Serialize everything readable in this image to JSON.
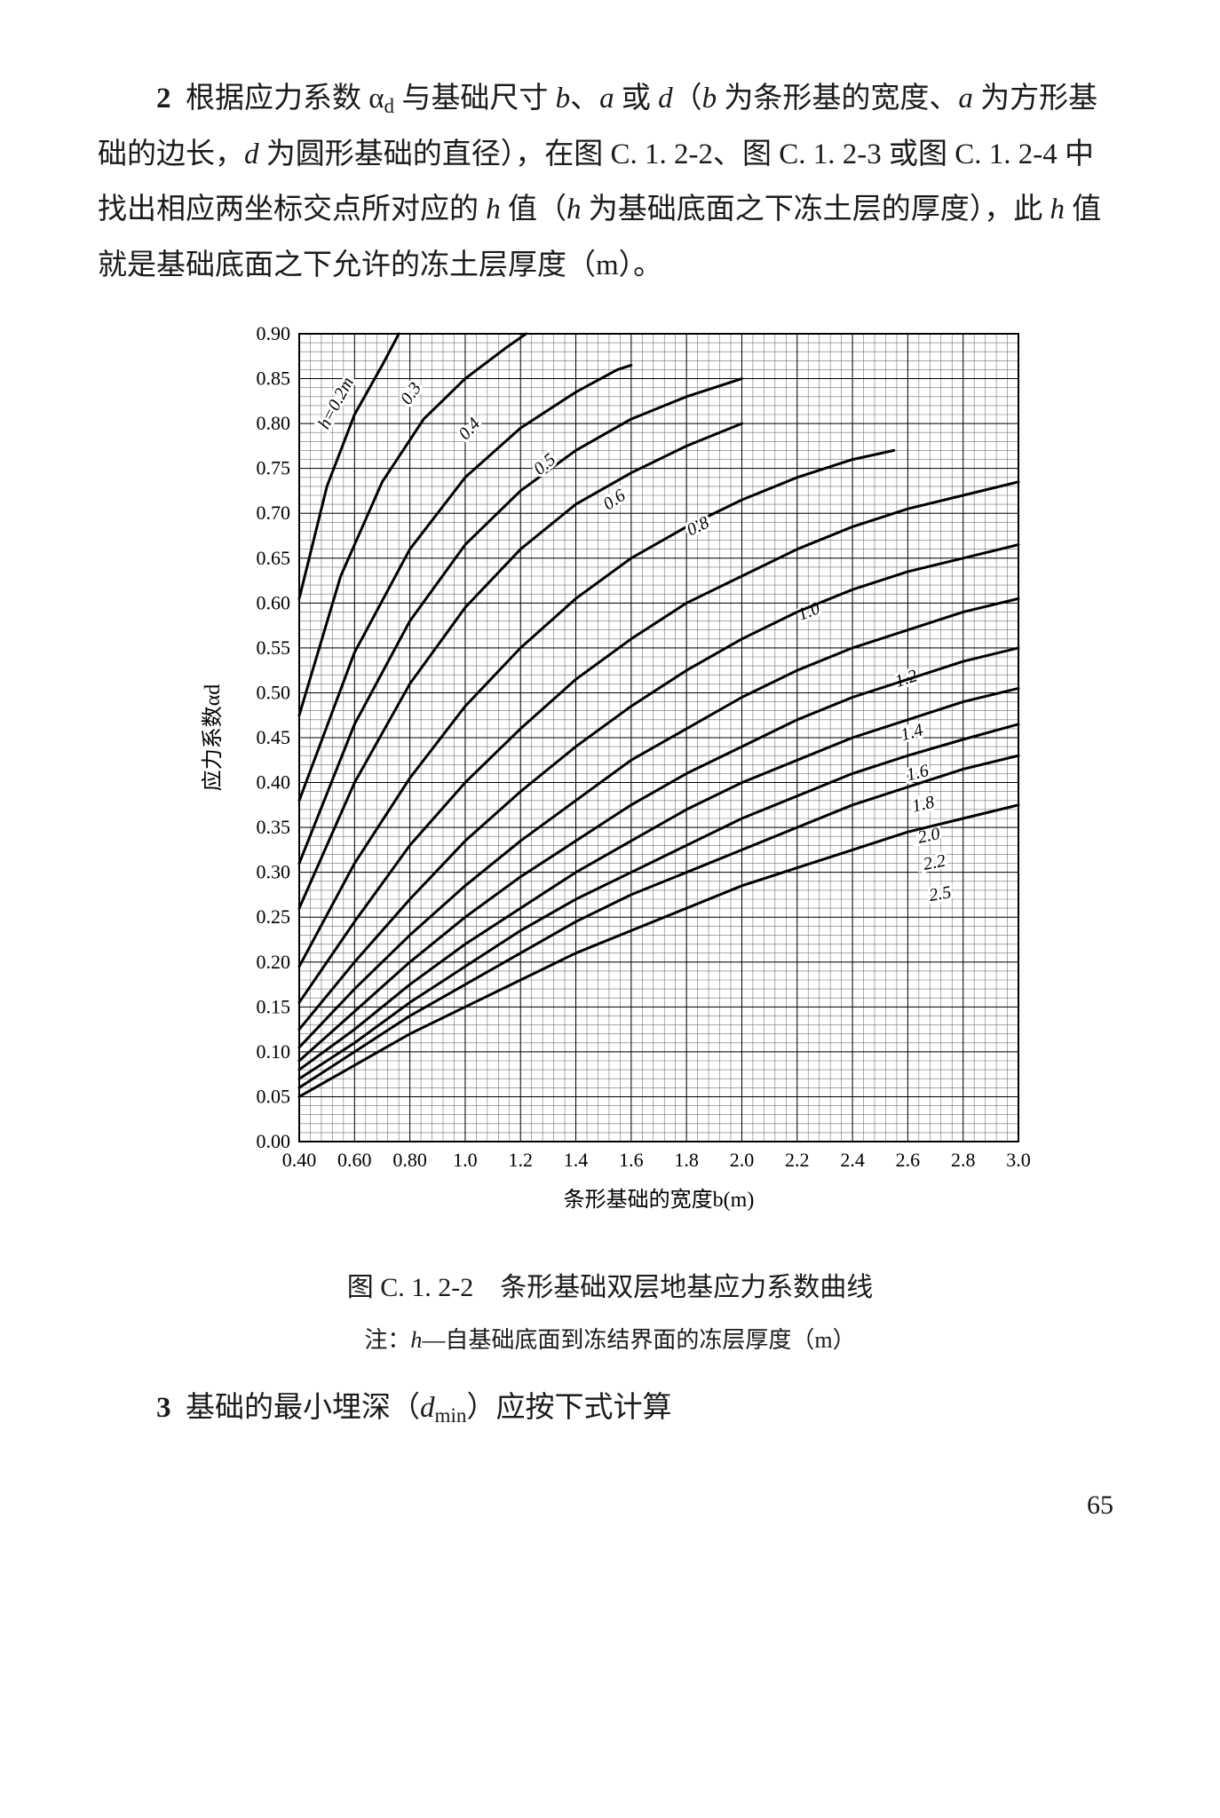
{
  "para2": {
    "num": "2",
    "text_1": "根据应力系数 α",
    "text_1b": " 与基础尺寸 ",
    "b": "b",
    "a": "a",
    "d": "d",
    "text_2": "、",
    "text_3": " 或 ",
    "text_4": "（",
    "text_5": " 为条形基的宽度、",
    "text_6": " 为方形基础的边长，",
    "text_7": " 为圆形基础的直径），在图 C. 1. 2-2、图 C. 1. 2-3 或图 C. 1. 2-4 中找出相应两坐标交点所对应的 ",
    "h": "h",
    "text_8": " 值（",
    "text_9": " 为基础底面之下冻土层的厚度），此 ",
    "text_10": " 值就是基础底面之下允许的冻土层厚度（m）。"
  },
  "chart": {
    "type": "line",
    "xlabel": "条形基础的宽度b(m)",
    "ylabel": "应力系数αd",
    "xlim": [
      0.4,
      3.0
    ],
    "ylim": [
      0,
      0.9
    ],
    "xticks": [
      0.4,
      0.6,
      0.8,
      1.0,
      1.2,
      1.4,
      1.6,
      1.8,
      2.0,
      2.2,
      2.4,
      2.6,
      2.8,
      3.0
    ],
    "xtick_labels": [
      "0.40",
      "0.60",
      "0.80",
      "1.0",
      "1.2",
      "1.4",
      "1.6",
      "1.8",
      "2.0",
      "2.2",
      "2.4",
      "2.6",
      "2.8",
      "3.0"
    ],
    "yticks": [
      0.0,
      0.05,
      0.1,
      0.15,
      0.2,
      0.25,
      0.3,
      0.35,
      0.4,
      0.45,
      0.5,
      0.55,
      0.6,
      0.65,
      0.7,
      0.75,
      0.8,
      0.85,
      0.9
    ],
    "ytick_labels": [
      "0.00",
      "0.05",
      "0.10",
      "0.15",
      "0.20",
      "0.25",
      "0.30",
      "0.35",
      "0.40",
      "0.45",
      "0.50",
      "0.55",
      "0.60",
      "0.65",
      "0.70",
      "0.75",
      "0.80",
      "0.85",
      "0.90"
    ],
    "minor_x_step": 0.04,
    "minor_y_step": 0.01,
    "line_color": "#000000",
    "grid_color": "#000000",
    "minor_grid_stroke": 0.6,
    "major_grid_stroke": 1.0,
    "curve_stroke": 3.0,
    "background_color": "#ffffff",
    "label_fontsize": 24,
    "tick_fontsize": 22,
    "series_first_label": "h=0.2m",
    "series": [
      {
        "h": "0.2",
        "pts": [
          [
            0.4,
            0.605
          ],
          [
            0.5,
            0.73
          ],
          [
            0.6,
            0.81
          ],
          [
            0.7,
            0.865
          ],
          [
            0.76,
            0.9
          ]
        ],
        "label_xy": [
          0.55,
          0.82
        ],
        "label_rot": -62
      },
      {
        "h": "0.3",
        "pts": [
          [
            0.4,
            0.475
          ],
          [
            0.55,
            0.63
          ],
          [
            0.7,
            0.735
          ],
          [
            0.85,
            0.805
          ],
          [
            1.0,
            0.85
          ],
          [
            1.15,
            0.885
          ],
          [
            1.22,
            0.9
          ]
        ],
        "label_xy": [
          0.82,
          0.83
        ],
        "label_rot": -55
      },
      {
        "h": "0.4",
        "pts": [
          [
            0.4,
            0.38
          ],
          [
            0.6,
            0.545
          ],
          [
            0.8,
            0.66
          ],
          [
            1.0,
            0.74
          ],
          [
            1.2,
            0.795
          ],
          [
            1.4,
            0.835
          ],
          [
            1.55,
            0.86
          ],
          [
            1.6,
            0.865
          ]
        ],
        "label_xy": [
          1.03,
          0.79
        ],
        "label_rot": -48
      },
      {
        "h": "0.5",
        "pts": [
          [
            0.4,
            0.31
          ],
          [
            0.6,
            0.465
          ],
          [
            0.8,
            0.58
          ],
          [
            1.0,
            0.665
          ],
          [
            1.2,
            0.725
          ],
          [
            1.4,
            0.77
          ],
          [
            1.6,
            0.805
          ],
          [
            1.8,
            0.83
          ],
          [
            2.0,
            0.85
          ]
        ],
        "label_xy": [
          1.3,
          0.75
        ],
        "label_rot": -40
      },
      {
        "h": "0.6",
        "pts": [
          [
            0.4,
            0.26
          ],
          [
            0.6,
            0.4
          ],
          [
            0.8,
            0.51
          ],
          [
            1.0,
            0.595
          ],
          [
            1.2,
            0.66
          ],
          [
            1.4,
            0.71
          ],
          [
            1.6,
            0.745
          ],
          [
            1.8,
            0.775
          ],
          [
            2.0,
            0.8
          ]
        ],
        "label_xy": [
          1.55,
          0.71
        ],
        "label_rot": -34
      },
      {
        "h": "0.8",
        "pts": [
          [
            0.4,
            0.195
          ],
          [
            0.6,
            0.31
          ],
          [
            0.8,
            0.405
          ],
          [
            1.0,
            0.485
          ],
          [
            1.2,
            0.55
          ],
          [
            1.4,
            0.605
          ],
          [
            1.6,
            0.65
          ],
          [
            1.8,
            0.685
          ],
          [
            2.0,
            0.715
          ],
          [
            2.2,
            0.74
          ],
          [
            2.4,
            0.76
          ],
          [
            2.55,
            0.77
          ]
        ],
        "label_xy": [
          1.85,
          0.68
        ],
        "label_rot": -26
      },
      {
        "h": "1.0",
        "pts": [
          [
            0.4,
            0.155
          ],
          [
            0.6,
            0.245
          ],
          [
            0.8,
            0.33
          ],
          [
            1.0,
            0.4
          ],
          [
            1.2,
            0.46
          ],
          [
            1.4,
            0.515
          ],
          [
            1.6,
            0.56
          ],
          [
            1.8,
            0.6
          ],
          [
            2.0,
            0.63
          ],
          [
            2.2,
            0.66
          ],
          [
            2.4,
            0.685
          ],
          [
            2.6,
            0.705
          ],
          [
            2.8,
            0.72
          ],
          [
            3.0,
            0.735
          ]
        ],
        "label_xy": [
          2.25,
          0.585
        ],
        "label_rot": -22
      },
      {
        "h": "1.2",
        "pts": [
          [
            0.4,
            0.125
          ],
          [
            0.6,
            0.2
          ],
          [
            0.8,
            0.27
          ],
          [
            1.0,
            0.335
          ],
          [
            1.2,
            0.39
          ],
          [
            1.4,
            0.44
          ],
          [
            1.6,
            0.485
          ],
          [
            1.8,
            0.525
          ],
          [
            2.0,
            0.56
          ],
          [
            2.2,
            0.59
          ],
          [
            2.4,
            0.615
          ],
          [
            2.6,
            0.635
          ],
          [
            2.8,
            0.65
          ],
          [
            3.0,
            0.665
          ]
        ],
        "label_xy": [
          2.6,
          0.51
        ],
        "label_rot": -18
      },
      {
        "h": "1.4",
        "pts": [
          [
            0.4,
            0.105
          ],
          [
            0.6,
            0.17
          ],
          [
            0.8,
            0.23
          ],
          [
            1.0,
            0.285
          ],
          [
            1.2,
            0.335
          ],
          [
            1.4,
            0.38
          ],
          [
            1.6,
            0.425
          ],
          [
            1.8,
            0.46
          ],
          [
            2.0,
            0.495
          ],
          [
            2.2,
            0.525
          ],
          [
            2.4,
            0.55
          ],
          [
            2.6,
            0.57
          ],
          [
            2.8,
            0.59
          ],
          [
            3.0,
            0.605
          ]
        ],
        "label_xy": [
          2.62,
          0.45
        ],
        "label_rot": -16
      },
      {
        "h": "1.6",
        "pts": [
          [
            0.4,
            0.09
          ],
          [
            0.6,
            0.145
          ],
          [
            0.8,
            0.2
          ],
          [
            1.0,
            0.25
          ],
          [
            1.2,
            0.295
          ],
          [
            1.4,
            0.335
          ],
          [
            1.6,
            0.375
          ],
          [
            1.8,
            0.41
          ],
          [
            2.0,
            0.44
          ],
          [
            2.2,
            0.47
          ],
          [
            2.4,
            0.495
          ],
          [
            2.6,
            0.515
          ],
          [
            2.8,
            0.535
          ],
          [
            3.0,
            0.55
          ]
        ],
        "label_xy": [
          2.64,
          0.405
        ],
        "label_rot": -14
      },
      {
        "h": "1.8",
        "pts": [
          [
            0.4,
            0.08
          ],
          [
            0.6,
            0.125
          ],
          [
            0.8,
            0.175
          ],
          [
            1.0,
            0.22
          ],
          [
            1.2,
            0.26
          ],
          [
            1.4,
            0.3
          ],
          [
            1.6,
            0.335
          ],
          [
            1.8,
            0.37
          ],
          [
            2.0,
            0.4
          ],
          [
            2.2,
            0.425
          ],
          [
            2.4,
            0.45
          ],
          [
            2.6,
            0.47
          ],
          [
            2.8,
            0.49
          ],
          [
            3.0,
            0.505
          ]
        ],
        "label_xy": [
          2.66,
          0.37
        ],
        "label_rot": -13
      },
      {
        "h": "2.0",
        "pts": [
          [
            0.4,
            0.07
          ],
          [
            0.6,
            0.11
          ],
          [
            0.8,
            0.155
          ],
          [
            1.0,
            0.195
          ],
          [
            1.2,
            0.235
          ],
          [
            1.4,
            0.27
          ],
          [
            1.6,
            0.3
          ],
          [
            1.8,
            0.33
          ],
          [
            2.0,
            0.36
          ],
          [
            2.2,
            0.385
          ],
          [
            2.4,
            0.41
          ],
          [
            2.6,
            0.43
          ],
          [
            2.8,
            0.448
          ],
          [
            3.0,
            0.465
          ]
        ],
        "label_xy": [
          2.68,
          0.335
        ],
        "label_rot": -12
      },
      {
        "h": "2.2",
        "pts": [
          [
            0.4,
            0.06
          ],
          [
            0.6,
            0.1
          ],
          [
            0.8,
            0.14
          ],
          [
            1.0,
            0.175
          ],
          [
            1.2,
            0.21
          ],
          [
            1.4,
            0.245
          ],
          [
            1.6,
            0.275
          ],
          [
            1.8,
            0.3
          ],
          [
            2.0,
            0.325
          ],
          [
            2.2,
            0.35
          ],
          [
            2.4,
            0.375
          ],
          [
            2.6,
            0.395
          ],
          [
            2.8,
            0.415
          ],
          [
            3.0,
            0.43
          ]
        ],
        "label_xy": [
          2.7,
          0.305
        ],
        "label_rot": -11
      },
      {
        "h": "2.5",
        "pts": [
          [
            0.4,
            0.05
          ],
          [
            0.6,
            0.085
          ],
          [
            0.8,
            0.12
          ],
          [
            1.0,
            0.15
          ],
          [
            1.2,
            0.18
          ],
          [
            1.4,
            0.21
          ],
          [
            1.6,
            0.235
          ],
          [
            1.8,
            0.26
          ],
          [
            2.0,
            0.285
          ],
          [
            2.2,
            0.305
          ],
          [
            2.4,
            0.325
          ],
          [
            2.6,
            0.345
          ],
          [
            2.8,
            0.36
          ],
          [
            3.0,
            0.375
          ]
        ],
        "label_xy": [
          2.72,
          0.27
        ],
        "label_rot": -10
      }
    ]
  },
  "caption": {
    "num": "图 C. 1. 2-2",
    "text": "条形基础双层地基应力系数曲线"
  },
  "note": {
    "prefix": "注：",
    "var": "h",
    "text": "—自基础底面到冻结界面的冻层厚度（m）"
  },
  "para3": {
    "num": "3",
    "text_1": "基础的最小埋深（",
    "var": "d",
    "sub": "min",
    "text_2": "）应按下式计算"
  },
  "page_number": "65"
}
